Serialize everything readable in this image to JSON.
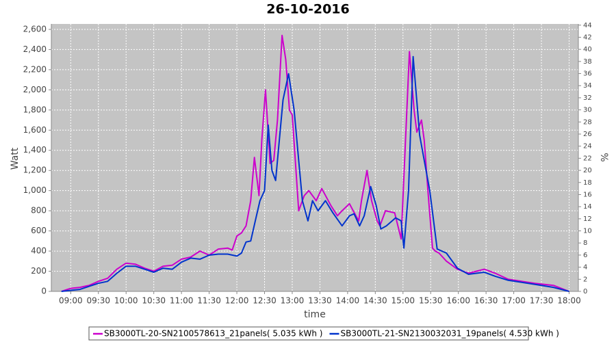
{
  "chart_data": {
    "type": "line",
    "title": "26-10-2016",
    "x_label": "time",
    "y_label": "Watt",
    "y2_label": "%",
    "xlim": [
      519,
      1090
    ],
    "xticks": [
      {
        "value": 540,
        "label": "09:00"
      },
      {
        "value": 570,
        "label": "09:30"
      },
      {
        "value": 600,
        "label": "10:00"
      },
      {
        "value": 630,
        "label": "10:30"
      },
      {
        "value": 660,
        "label": "11:00"
      },
      {
        "value": 690,
        "label": "11:30"
      },
      {
        "value": 720,
        "label": "12:00"
      },
      {
        "value": 750,
        "label": "12:30"
      },
      {
        "value": 780,
        "label": "13:00"
      },
      {
        "value": 810,
        "label": "13:30"
      },
      {
        "value": 840,
        "label": "14:00"
      },
      {
        "value": 870,
        "label": "14:30"
      },
      {
        "value": 900,
        "label": "15:00"
      },
      {
        "value": 930,
        "label": "15:30"
      },
      {
        "value": 960,
        "label": "16:00"
      },
      {
        "value": 990,
        "label": "16:30"
      },
      {
        "value": 1020,
        "label": "17:00"
      },
      {
        "value": 1050,
        "label": "17:30"
      },
      {
        "value": 1080,
        "label": "18:00"
      }
    ],
    "ylim": [
      0,
      2654
    ],
    "yticks": [
      0,
      200,
      400,
      600,
      800,
      {
        "value": 1000,
        "label": "1,000"
      },
      {
        "value": 1200,
        "label": "1,200"
      },
      {
        "value": 1400,
        "label": "1,400"
      },
      {
        "value": 1600,
        "label": "1,600"
      },
      {
        "value": 1800,
        "label": "1,800"
      },
      {
        "value": 2000,
        "label": "2,000"
      },
      {
        "value": 2200,
        "label": "2,200"
      },
      {
        "value": 2400,
        "label": "2,400"
      },
      {
        "value": 2600,
        "label": "2,600"
      }
    ],
    "y2lim": [
      0,
      44.2
    ],
    "y2ticks": [
      0,
      2,
      4,
      6,
      8,
      10,
      12,
      14,
      16,
      18,
      20,
      22,
      24,
      26,
      28,
      30,
      32,
      34,
      36,
      38,
      40,
      42,
      44
    ],
    "grid": true,
    "legend": "bottom",
    "series": [
      {
        "name": "SB3000TL-20-SN2100578613_21panels( 5.035 kWh )",
        "color": "#cc00cc",
        "x": [
          530,
          540,
          550,
          560,
          570,
          580,
          590,
          600,
          610,
          620,
          630,
          640,
          650,
          660,
          670,
          680,
          690,
          700,
          710,
          715,
          720,
          725,
          730,
          735,
          739,
          744,
          747,
          751,
          756,
          760,
          764,
          769,
          773,
          777,
          780,
          787,
          793,
          798,
          806,
          812,
          822,
          829,
          834,
          842,
          846,
          852,
          855,
          861,
          866,
          872,
          875,
          881,
          891,
          898,
          907,
          912,
          915,
          920,
          923,
          927,
          932,
          935,
          939,
          947,
          959,
          971,
          988,
          1000,
          1014,
          1043,
          1063,
          1080
        ],
        "values": [
          0,
          30,
          40,
          60,
          100,
          130,
          220,
          280,
          270,
          230,
          200,
          250,
          260,
          320,
          340,
          400,
          360,
          420,
          430,
          410,
          550,
          580,
          650,
          900,
          1330,
          950,
          1500,
          2000,
          1270,
          1300,
          1700,
          2540,
          2300,
          1800,
          1750,
          800,
          950,
          1000,
          900,
          1020,
          850,
          750,
          800,
          870,
          800,
          700,
          900,
          1200,
          900,
          700,
          650,
          800,
          780,
          520,
          2380,
          1800,
          1580,
          1700,
          1500,
          1000,
          430,
          400,
          380,
          300,
          220,
          180,
          220,
          180,
          120,
          80,
          60,
          0
        ]
      },
      {
        "name": "SB3000TL-21-SN2130032031_19panels( 4.530 kWh )",
        "color": "#0033cc",
        "x": [
          530,
          540,
          550,
          560,
          570,
          580,
          590,
          600,
          610,
          620,
          630,
          640,
          650,
          660,
          670,
          680,
          690,
          700,
          710,
          720,
          725,
          730,
          735,
          740,
          745,
          750,
          754,
          758,
          762,
          766,
          770,
          776,
          782,
          787,
          791,
          797,
          802,
          808,
          816,
          824,
          834,
          842,
          847,
          853,
          858,
          865,
          871,
          876,
          882,
          892,
          898,
          901,
          906,
          911,
          918,
          923,
          929,
          937,
          947,
          959,
          971,
          988,
          1000,
          1014,
          1043,
          1063,
          1080
        ],
        "values": [
          0,
          10,
          20,
          50,
          80,
          100,
          180,
          250,
          250,
          220,
          190,
          230,
          220,
          290,
          330,
          320,
          360,
          370,
          370,
          350,
          380,
          490,
          500,
          700,
          900,
          1000,
          1650,
          1200,
          1100,
          1500,
          1900,
          2160,
          1800,
          1300,
          900,
          700,
          900,
          800,
          900,
          780,
          650,
          750,
          770,
          650,
          750,
          1040,
          850,
          620,
          650,
          730,
          700,
          430,
          1000,
          2330,
          1550,
          1300,
          1000,
          420,
          380,
          230,
          170,
          190,
          150,
          110,
          70,
          40,
          0
        ]
      }
    ]
  }
}
